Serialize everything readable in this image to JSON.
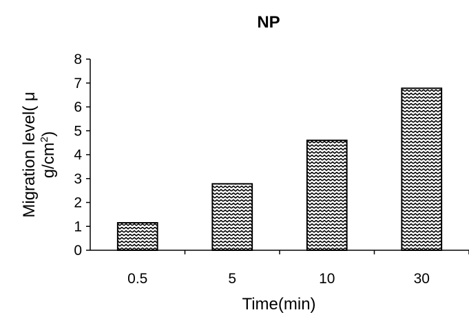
{
  "chart_data": {
    "type": "bar",
    "title": "NP",
    "xlabel": "Time(min)",
    "ylabel_line1": "Migration level( μ",
    "ylabel_line2_base": "g/cm",
    "ylabel_line2_sup": "2",
    "ylabel_line2_close": ")",
    "categories": [
      "0.5",
      "5",
      "10",
      "30"
    ],
    "values": [
      1.15,
      2.78,
      4.6,
      6.78
    ],
    "ylim": [
      0,
      8
    ],
    "yticks": [
      "0",
      "1",
      "2",
      "3",
      "4",
      "5",
      "6",
      "7",
      "8"
    ],
    "grid": false,
    "legend": "none",
    "bar_fill": "zigzag hatch",
    "colors": {
      "bar_stroke": "#000000",
      "bar_pattern": "#000000",
      "background": "#ffffff"
    }
  }
}
